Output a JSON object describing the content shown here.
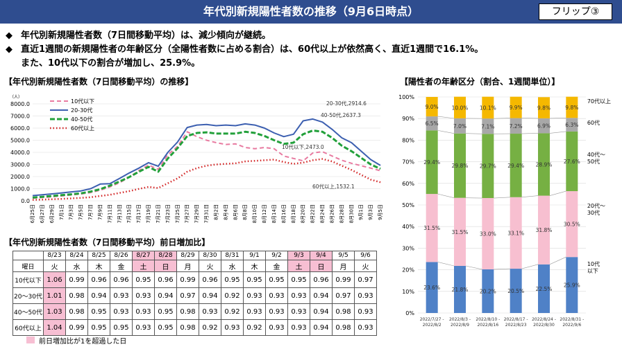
{
  "header": {
    "title": "年代別新規陽性者数の推移（9月6日時点）",
    "flip": "フリップ③"
  },
  "bullets": [
    {
      "mark": "◆",
      "text": "年代別新規陽性者数（7日間移動平均）は、減少傾向が継続。"
    },
    {
      "mark": "◆",
      "text": "直近1週間の新規陽性者の年齢区分（全陽性者数に占める割合）は、60代以上が依然高く、直近1週間で16.1%。"
    },
    {
      "mark": "",
      "text": "また、10代以下の割合が増加し、25.9%。"
    }
  ],
  "sections": {
    "line": "【年代別新規陽性者数（7日間移動平均）の推移】",
    "table": "【年代別新規陽性者数（7日間移動平均）前日増加比】",
    "bar": "【陽性者の年齢区分（割合、1週間単位）】"
  },
  "chart_data": [
    {
      "type": "line",
      "unit": "（人）",
      "ylim": [
        0,
        8000
      ],
      "yticks": [
        "0.0",
        "1000.0",
        "2000.0",
        "3000.0",
        "4000.0",
        "5000.0",
        "6000.0",
        "7000.0",
        "8000.0"
      ],
      "x": [
        "6月25日",
        "6月27日",
        "6月29日",
        "7月1日",
        "7月3日",
        "7月5日",
        "7月7日",
        "7月9日",
        "7月11日",
        "7月13日",
        "7月15日",
        "7月17日",
        "7月19日",
        "7月21日",
        "7月23日",
        "7月25日",
        "7月27日",
        "7月29日",
        "7月31日",
        "8月2日",
        "8月4日",
        "8月6日",
        "8月8日",
        "8月10日",
        "8月12日",
        "8月14日",
        "8月16日",
        "8月18日",
        "8月20日",
        "8月22日",
        "8月24日",
        "8月26日",
        "8月28日",
        "8月30日",
        "9月1日",
        "9月3日",
        "9月5日"
      ],
      "series": [
        {
          "name": "10代以下",
          "color": "#e87aa0",
          "dash": "6,4",
          "width": 2,
          "values": [
            220,
            270,
            330,
            400,
            480,
            560,
            680,
            880,
            1150,
            1500,
            1950,
            2500,
            2950,
            2600,
            3800,
            4500,
            5700,
            5300,
            5000,
            4800,
            4650,
            4700,
            4400,
            4300,
            4400,
            4300,
            3700,
            3500,
            3300,
            3950,
            4050,
            3700,
            3350,
            3100,
            2900,
            2700,
            2480
          ]
        },
        {
          "name": "20-30代",
          "color": "#3c5fb0",
          "dash": "",
          "width": 2,
          "values": [
            430,
            500,
            570,
            650,
            740,
            820,
            1000,
            1380,
            1420,
            1850,
            2300,
            2700,
            3150,
            2850,
            4000,
            4850,
            6050,
            6250,
            6300,
            6200,
            6250,
            6200,
            6350,
            6250,
            6000,
            5600,
            5300,
            5500,
            6600,
            6750,
            6500,
            5900,
            5200,
            4800,
            4100,
            3400,
            2920
          ]
        },
        {
          "name": "40-50代",
          "color": "#22a03a",
          "dash": "7,3",
          "width": 3,
          "values": [
            260,
            330,
            400,
            470,
            540,
            620,
            760,
            960,
            1250,
            1600,
            1960,
            2400,
            2800,
            2400,
            3500,
            4350,
            5350,
            5600,
            5650,
            5550,
            5550,
            5550,
            5700,
            5600,
            5350,
            5000,
            4700,
            4800,
            5500,
            5800,
            5700,
            5200,
            4550,
            4100,
            3550,
            3000,
            2640
          ]
        },
        {
          "name": "60代以上",
          "color": "#d22020",
          "dash": "1.5,3",
          "width": 2.5,
          "values": [
            80,
            100,
            130,
            160,
            200,
            240,
            300,
            400,
            500,
            650,
            800,
            980,
            1150,
            1050,
            1450,
            1850,
            2400,
            2700,
            2900,
            3000,
            3050,
            3100,
            3250,
            3300,
            3350,
            3400,
            3200,
            3050,
            3150,
            3350,
            3450,
            3250,
            2900,
            2550,
            2150,
            1750,
            1530
          ]
        }
      ],
      "annotations": [
        "20-30代,2914.6",
        "40-50代,2637.3",
        "10代以下,2473.0",
        "60代以上,1532.1"
      ]
    },
    {
      "type": "bar",
      "stacked": true,
      "ylim": [
        0,
        100
      ],
      "yticks": [
        "0%",
        "10%",
        "20%",
        "30%",
        "40%",
        "50%",
        "60%",
        "70%",
        "80%",
        "90%",
        "100%"
      ],
      "categories": [
        [
          "2022/7/27",
          "2022/8/2"
        ],
        [
          "2022/8/3",
          "2022/8/9"
        ],
        [
          "2022/8/10",
          "2022/8/16"
        ],
        [
          "2022/8/17",
          "2022/8/23"
        ],
        [
          "2022/8/24",
          "2022/8/30"
        ],
        [
          "2022/8/31",
          "2022/9/6"
        ]
      ],
      "series": [
        {
          "name": "10代以下",
          "color": "#4f81c7",
          "values": [
            23.6,
            21.8,
            20.2,
            20.5,
            22.5,
            25.9
          ]
        },
        {
          "name": "20代〜30代",
          "color": "#f7bfd0",
          "values": [
            31.5,
            31.5,
            33.0,
            33.1,
            31.8,
            30.5
          ]
        },
        {
          "name": "40代〜50代",
          "color": "#76b043",
          "values": [
            29.4,
            29.8,
            29.7,
            29.4,
            28.9,
            27.6
          ]
        },
        {
          "name": "60代",
          "color": "#a8a8a8",
          "values": [
            6.5,
            7.0,
            7.1,
            7.2,
            6.9,
            6.3
          ]
        },
        {
          "name": "70代以上",
          "color": "#f5b800",
          "values": [
            9.0,
            10.0,
            10.1,
            9.9,
            9.8,
            9.8
          ]
        }
      ],
      "labels": [
        [
          "23.6%",
          "21.8%",
          "20.2%",
          "20.5%",
          "22.5%",
          "25.9%"
        ],
        [
          "31.5%",
          "31.5%",
          "33.0%",
          "33.1%",
          "31.8%",
          "30.5%"
        ],
        [
          "29.4%",
          "29.8%",
          "29.7%",
          "29.4%",
          "28.9%",
          "27.6%"
        ],
        [
          "6.5%",
          "7.0%",
          "7.1%",
          "7.2%",
          "6.9%",
          "6.3%"
        ],
        [
          "9.0%",
          "10.0%",
          "10.1%",
          "9.9%",
          "9.8%",
          "9.8%"
        ]
      ],
      "side_labels": [
        [
          "10代",
          "以下"
        ],
        [
          "20代〜",
          "30代"
        ],
        [
          "40代〜",
          "50代"
        ],
        [
          "60代"
        ],
        [
          "70代以上"
        ]
      ]
    },
    {
      "type": "table",
      "dates": [
        "8/23",
        "8/24",
        "8/25",
        "8/26",
        "8/27",
        "8/28",
        "8/29",
        "8/30",
        "8/31",
        "9/1",
        "9/2",
        "9/3",
        "9/4",
        "9/5",
        "9/6"
      ],
      "date_highlight": [
        false,
        false,
        false,
        false,
        true,
        true,
        false,
        false,
        false,
        false,
        false,
        true,
        true,
        false,
        false
      ],
      "dow_label": "曜日",
      "dows": [
        "火",
        "水",
        "木",
        "金",
        "土",
        "日",
        "月",
        "火",
        "水",
        "木",
        "金",
        "土",
        "日",
        "月",
        "火"
      ],
      "rows": [
        {
          "label": "10代以下",
          "values": [
            "1.06",
            "0.99",
            "0.96",
            "0.96",
            "0.95",
            "0.96",
            "0.99",
            "0.96",
            "0.95",
            "0.95",
            "0.95",
            "0.95",
            "0.96",
            "0.99",
            "0.97"
          ]
        },
        {
          "label": "20〜30代",
          "values": [
            "1.01",
            "0.98",
            "0.94",
            "0.93",
            "0.93",
            "0.94",
            "0.97",
            "0.94",
            "0.92",
            "0.93",
            "0.93",
            "0.93",
            "0.94",
            "0.97",
            "0.93"
          ]
        },
        {
          "label": "40〜50代",
          "values": [
            "1.03",
            "0.98",
            "0.95",
            "0.93",
            "0.93",
            "0.95",
            "0.98",
            "0.93",
            "0.92",
            "0.93",
            "0.93",
            "0.93",
            "0.94",
            "0.98",
            "0.93"
          ]
        },
        {
          "label": "60代以上",
          "values": [
            "1.04",
            "0.99",
            "0.95",
            "0.95",
            "0.93",
            "0.95",
            "0.98",
            "0.92",
            "0.93",
            "0.92",
            "0.93",
            "0.93",
            "0.94",
            "0.98",
            "0.93"
          ]
        }
      ],
      "legend": "前日増加比が1を超過した日"
    }
  ]
}
